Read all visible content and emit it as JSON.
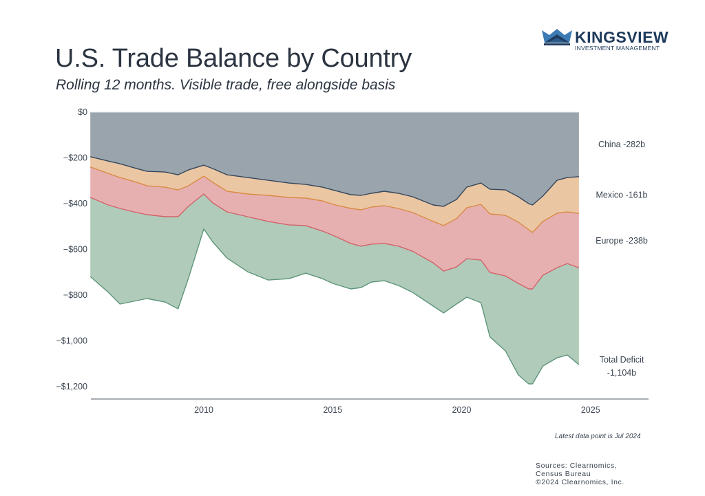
{
  "header": {
    "title": "U.S. Trade Balance by Country",
    "subtitle": "Rolling 12 months. Visible trade, free alongside basis"
  },
  "logo": {
    "name": "KINGSVIEW",
    "tagline": "INVESTMENT MANAGEMENT",
    "colors": {
      "dark": "#1e3a5c",
      "light": "#3d7bb5"
    }
  },
  "footer": {
    "note": "Latest data point is Jul 2024",
    "sources_line1": "Sources: Clearnomics,",
    "sources_line2": "Census Bureau",
    "copyright": "©2024 Clearnomics, Inc."
  },
  "chart_data": {
    "type": "area",
    "stacked": true,
    "title": "U.S. Trade Balance by Country",
    "subtitle": "Rolling 12 months. Visible trade, free alongside basis",
    "xlabel": "",
    "ylabel": "",
    "units": "USD billions",
    "xlim": [
      2005.6,
      2027.2
    ],
    "ylim": [
      -1250,
      0
    ],
    "grid": false,
    "y_ticks": [
      0,
      -200,
      -400,
      -600,
      -800,
      -1000,
      -1200
    ],
    "y_tick_labels": [
      "$0",
      "−$200",
      "−$400",
      "−$600",
      "−$800",
      "−$1,000",
      "−$1,200"
    ],
    "x_ticks": [
      2010,
      2015,
      2020,
      2025
    ],
    "x_tick_labels": [
      "2010",
      "2015",
      "2020",
      "2025"
    ],
    "x": [
      2005.6,
      2006.3,
      2006.75,
      2007.4,
      2007.8,
      2008.5,
      2009.0,
      2009.4,
      2010.0,
      2010.35,
      2010.9,
      2011.7,
      2012.5,
      2013.3,
      2013.95,
      2014.6,
      2015.0,
      2015.7,
      2016.1,
      2016.5,
      2017.0,
      2017.55,
      2018.1,
      2018.9,
      2019.3,
      2019.8,
      2020.2,
      2020.75,
      2021.1,
      2021.7,
      2022.2,
      2022.6,
      2022.75,
      2023.15,
      2023.7,
      2024.1,
      2024.55
    ],
    "series": [
      {
        "name": "China",
        "color": "#9aa4ad",
        "line_color": "#34475a",
        "cumulative": [
          -195,
          -214,
          -226,
          -247,
          -259,
          -262,
          -274,
          -253,
          -232,
          -247,
          -274,
          -286,
          -298,
          -310,
          -316,
          -328,
          -340,
          -361,
          -364,
          -355,
          -346,
          -355,
          -370,
          -406,
          -412,
          -382,
          -328,
          -310,
          -337,
          -340,
          -370,
          -400,
          -406,
          -367,
          -298,
          -286,
          -282
        ]
      },
      {
        "name": "Mexico",
        "color": "#ebc6a3",
        "line_color": "#d98b45",
        "cumulative": [
          -240,
          -268,
          -286,
          -307,
          -322,
          -328,
          -340,
          -322,
          -280,
          -307,
          -346,
          -358,
          -364,
          -373,
          -376,
          -388,
          -403,
          -421,
          -427,
          -415,
          -409,
          -421,
          -439,
          -478,
          -496,
          -466,
          -418,
          -403,
          -445,
          -451,
          -481,
          -514,
          -526,
          -478,
          -442,
          -436,
          -443
        ]
      },
      {
        "name": "Europe",
        "color": "#e6b0b0",
        "line_color": "#d2636a",
        "cumulative": [
          -373,
          -406,
          -421,
          -439,
          -448,
          -457,
          -457,
          -412,
          -358,
          -397,
          -436,
          -457,
          -478,
          -493,
          -496,
          -520,
          -538,
          -574,
          -586,
          -577,
          -574,
          -586,
          -608,
          -659,
          -695,
          -677,
          -641,
          -647,
          -701,
          -716,
          -749,
          -773,
          -773,
          -713,
          -680,
          -662,
          -681
        ]
      },
      {
        "name": "Total Deficit",
        "color": "#b0cbba",
        "line_color": "#5e957a",
        "cumulative": [
          -719,
          -788,
          -839,
          -824,
          -815,
          -830,
          -860,
          -728,
          -511,
          -568,
          -638,
          -698,
          -734,
          -728,
          -704,
          -728,
          -749,
          -773,
          -767,
          -743,
          -737,
          -758,
          -788,
          -848,
          -878,
          -839,
          -809,
          -833,
          -983,
          -1044,
          -1149,
          -1188,
          -1188,
          -1110,
          -1074,
          -1062,
          -1104
        ]
      }
    ],
    "end_labels": [
      {
        "series": "China",
        "text": "China -282b",
        "value": -282
      },
      {
        "series": "Mexico",
        "text": "Mexico -161b",
        "value": -161
      },
      {
        "series": "Europe",
        "text": "Europe -238b",
        "value": -238
      },
      {
        "series": "Total Deficit",
        "text": "Total Deficit",
        "text2": "-1,104b",
        "value": -1104
      }
    ],
    "annotation": "Latest data point is Jul 2024"
  }
}
